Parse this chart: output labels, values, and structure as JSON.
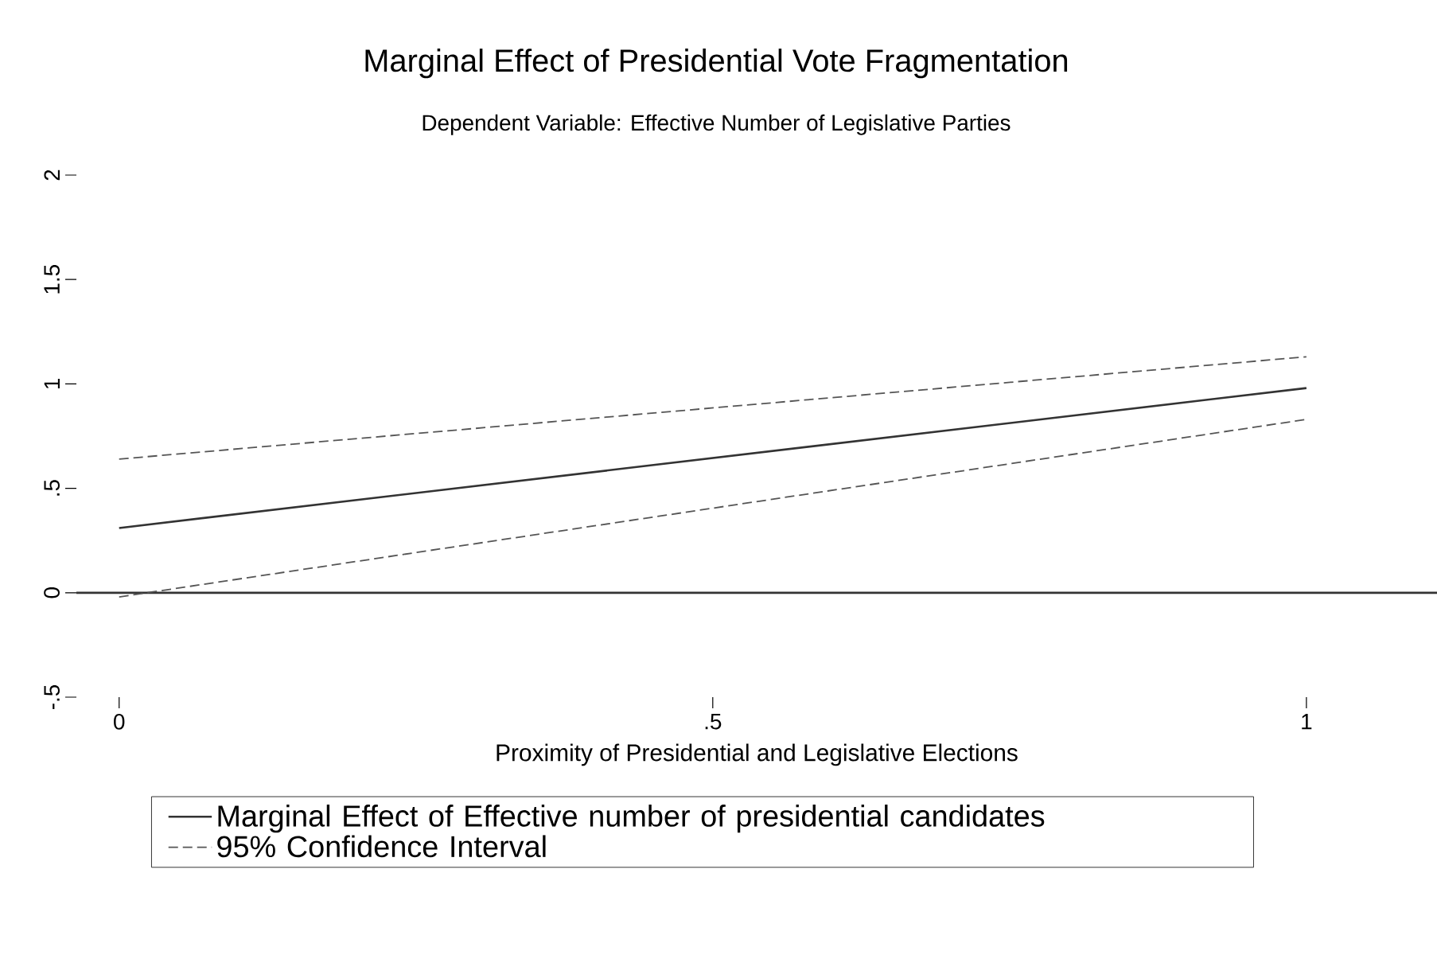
{
  "chart_data": {
    "type": "line",
    "title": "Marginal Effect of Presidential Vote Fragmentation",
    "subtitle": "Dependent Variable: Effective Number of Legislative Parties",
    "xlabel": "Proximity of Presidential and Legislative Elections",
    "x": [
      0,
      1
    ],
    "xlim": [
      -0.036,
      1.11
    ],
    "ylim": [
      -0.5,
      2
    ],
    "xticks": [
      0,
      {
        "value": 0.5,
        "label": ".5"
      },
      1
    ],
    "yticks": [
      {
        "value": -0.5,
        "label": "-.5"
      },
      0,
      {
        "value": 0.5,
        "label": ".5"
      },
      1,
      1.5,
      2
    ],
    "series": [
      {
        "name": "Marginal Effect of Effective number of presidential candidates",
        "color": "#333333",
        "line_style": "solid",
        "values": [
          0.31,
          0.98
        ]
      },
      {
        "name": "95% Confidence Interval",
        "color": "#555555",
        "line_style": "dashed",
        "values": [
          0.64,
          1.13
        ]
      },
      {
        "color": "#555555",
        "line_style": "dashed",
        "values": [
          -0.02,
          0.83
        ]
      }
    ],
    "ref_lines": [
      {
        "axis": "y",
        "value": 0,
        "color": "#333333"
      }
    ],
    "legend": "bottom"
  }
}
